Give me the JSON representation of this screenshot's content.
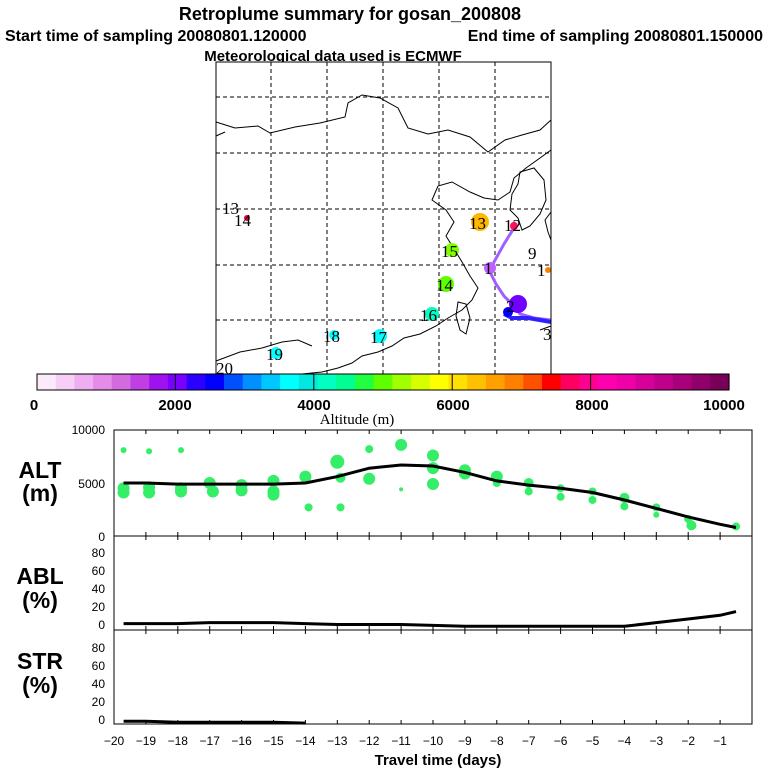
{
  "title": "Retroplume summary for gosan_200808",
  "start_label": "Start time of sampling 20080801.120000",
  "end_label": "End time of sampling 20080801.150000",
  "met_label": "Meteorological data used is ECMWF",
  "colorbar": {
    "title": "Altitude (m)",
    "tick_labels": [
      "0",
      "2000",
      "4000",
      "6000",
      "8000",
      "10000"
    ],
    "colors": [
      "#fbeafb",
      "#f6cef6",
      "#f0aef2",
      "#e58be8",
      "#d36add",
      "#bf3fe3",
      "#9e12f0",
      "#7a00ff",
      "#2a00ff",
      "#0000ff",
      "#0050ff",
      "#0090ff",
      "#00c8ff",
      "#00ffff",
      "#00e8e0",
      "#00ffc0",
      "#00ff90",
      "#20ff40",
      "#60ff00",
      "#a0ff00",
      "#d8ff00",
      "#ffff00",
      "#ffe000",
      "#ffc000",
      "#ffa000",
      "#ff8000",
      "#ff5000",
      "#ff0000",
      "#ff0060",
      "#ff0090",
      "#ff00b0",
      "#f000a8",
      "#d8009a",
      "#c0008a",
      "#a8007a",
      "#90006a",
      "#780058"
    ]
  },
  "map": {
    "labels": [
      {
        "text": "13",
        "color": "#000000"
      },
      {
        "text": "14",
        "color": "#000000"
      },
      {
        "text": "13",
        "color": "#ffb800"
      },
      {
        "text": "12",
        "color": "#ff1060"
      },
      {
        "text": "9",
        "color": "#000000"
      },
      {
        "text": "15",
        "color": "#80ff00"
      },
      {
        "text": "1",
        "color": "#b040e0"
      },
      {
        "text": "14",
        "color": "#60ff00"
      },
      {
        "text": "16",
        "color": "#00ffc0"
      },
      {
        "text": "18",
        "color": "#00ffff"
      },
      {
        "text": "17",
        "color": "#00ffff"
      },
      {
        "text": "19",
        "color": "#00ffff"
      },
      {
        "text": "20",
        "color": "#00ffff"
      },
      {
        "text": "2",
        "color": "#6000ff"
      },
      {
        "text": "3",
        "color": "#0000ff"
      },
      {
        "text": "1",
        "color": "#ff8000"
      }
    ]
  },
  "panels": {
    "alt": {
      "name": "ALT",
      "unit": "(m)",
      "y_ticks": [
        "10000",
        "5000",
        "0"
      ]
    },
    "abl": {
      "name": "ABL",
      "unit": "(%)",
      "y_ticks": [
        "80",
        "60",
        "40",
        "20",
        "0"
      ]
    },
    "str": {
      "name": "STR",
      "unit": "(%)",
      "y_ticks": [
        "80",
        "60",
        "40",
        "20",
        "0"
      ]
    }
  },
  "xaxis": {
    "label": "Travel time (days)"
  },
  "chart_data": [
    {
      "type": "line",
      "title": "ALT",
      "ylabel": "(m)",
      "xlabel": "Travel time (days)",
      "xlim": [
        -20,
        0
      ],
      "ylim": [
        0,
        10000
      ],
      "x_ticks": [
        -20,
        -19,
        -18,
        -17,
        -16,
        -15,
        -14,
        -13,
        -12,
        -11,
        -10,
        -9,
        -8,
        -7,
        -6,
        -5,
        -4,
        -3,
        -2,
        -1
      ],
      "series": [
        {
          "name": "mean altitude",
          "x": [
            -19.7,
            -19,
            -18,
            -17,
            -16,
            -15,
            -14,
            -13,
            -12,
            -11,
            -10,
            -9,
            -8,
            -7,
            -6,
            -5,
            -4,
            -3,
            -2,
            -1,
            -0.5
          ],
          "values": [
            5000,
            5000,
            4900,
            4900,
            4900,
            4900,
            5000,
            5600,
            6400,
            6700,
            6600,
            6000,
            5200,
            4800,
            4500,
            4100,
            3400,
            2600,
            1800,
            1100,
            800
          ]
        },
        {
          "name": "cluster altitudes",
          "type": "scatter",
          "x": [
            -19.7,
            -19.7,
            -19.7,
            -18.9,
            -18.9,
            -18.9,
            -17.9,
            -17.9,
            -17.9,
            -17,
            -16.9,
            -16,
            -16,
            -15,
            -15,
            -15,
            -14,
            -13.9,
            -13,
            -12.9,
            -12.9,
            -12,
            -12,
            -11,
            -11,
            -10,
            -10,
            -10,
            -9,
            -9,
            -8,
            -8,
            -7,
            -7,
            -6,
            -6,
            -5,
            -5,
            -4,
            -4,
            -3,
            -3,
            -2,
            -1.9,
            -0.5
          ],
          "values": [
            4500,
            4100,
            8100,
            4600,
            4100,
            8000,
            4500,
            4200,
            8100,
            5000,
            4200,
            4800,
            4300,
            5200,
            4200,
            3900,
            5600,
            2700,
            7000,
            5500,
            2700,
            8200,
            5400,
            8600,
            4400,
            7600,
            6400,
            4900,
            6200,
            5900,
            5600,
            5000,
            5000,
            4200,
            4500,
            3700,
            4200,
            3400,
            3600,
            2800,
            2700,
            2000,
            1600,
            1000,
            900
          ],
          "sizes": [
            6,
            6,
            3,
            6,
            6,
            3,
            6,
            6,
            3,
            6,
            6,
            6,
            6,
            6,
            6,
            6,
            6,
            4,
            7,
            5,
            4,
            4,
            6,
            6,
            2,
            6,
            6,
            6,
            6,
            6,
            6,
            4,
            5,
            4,
            4,
            4,
            4,
            4,
            5,
            4,
            4,
            3,
            4,
            5,
            4
          ]
        }
      ]
    },
    {
      "type": "line",
      "title": "ABL",
      "ylabel": "(%)",
      "xlim": [
        -20,
        0
      ],
      "ylim": [
        0,
        100
      ],
      "series": [
        {
          "name": "ABL fraction",
          "x": [
            -19.7,
            -19,
            -18,
            -17,
            -16,
            -15,
            -14,
            -13,
            -12,
            -11,
            -10,
            -9,
            -8,
            -7,
            -6,
            -5,
            -4,
            -3,
            -2,
            -1,
            -0.5
          ],
          "values": [
            7,
            7,
            7,
            8,
            8,
            8,
            7,
            6,
            6,
            6,
            5,
            4,
            4,
            4,
            4,
            4,
            4,
            8,
            12,
            16,
            20
          ]
        }
      ]
    },
    {
      "type": "line",
      "title": "STR",
      "ylabel": "(%)",
      "xlim": [
        -20,
        0
      ],
      "ylim": [
        0,
        100
      ],
      "series": [
        {
          "name": "STR fraction",
          "x": [
            -19.7,
            -19,
            -18,
            -17,
            -16,
            -15,
            -14
          ],
          "values": [
            3,
            3,
            2,
            2,
            2,
            2,
            1
          ]
        }
      ]
    }
  ]
}
